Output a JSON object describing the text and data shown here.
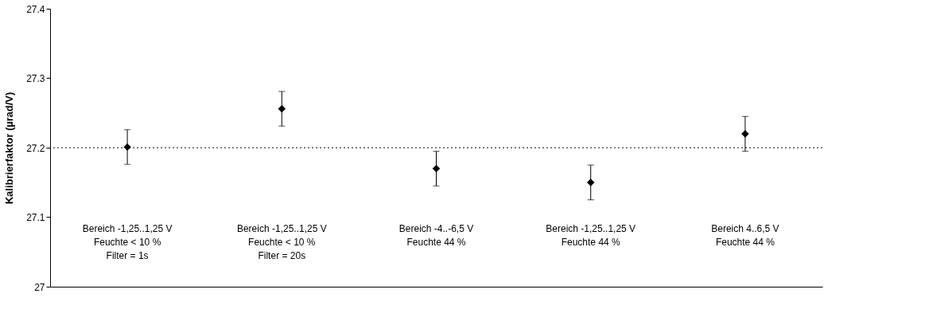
{
  "chart_data": {
    "type": "scatter",
    "ylabel": "Kalibrierfaktor (µrad/V)",
    "categories": [
      "Bereich -1,25..1,25 V\nFeuchte < 10 %\nFilter = 1s",
      "Bereich -1,25..1,25 V\nFeuchte < 10 %\nFilter = 20s",
      "Bereich -4..-6,5 V\nFeuchte 44 %",
      "Bereich -1,25..1,25 V\nFeuchte 44 %",
      "Bereich 4..6,5 V\nFeuchte 44 %"
    ],
    "series": [
      {
        "color": "#000000",
        "values": [
          27.201,
          27.256,
          27.17,
          27.15,
          27.22
        ],
        "errors": [
          0.025,
          0.025,
          0.025,
          0.025,
          0.025
        ]
      }
    ],
    "ylim": [
      27,
      27.4
    ],
    "yticks": [
      27,
      27.1,
      27.2,
      27.3,
      27.4
    ],
    "ref_lines": [
      {
        "axis": "y",
        "value": 27.2,
        "color": "#000000",
        "line_style": "dotted"
      }
    ],
    "marker": "diamond",
    "grid": false
  }
}
